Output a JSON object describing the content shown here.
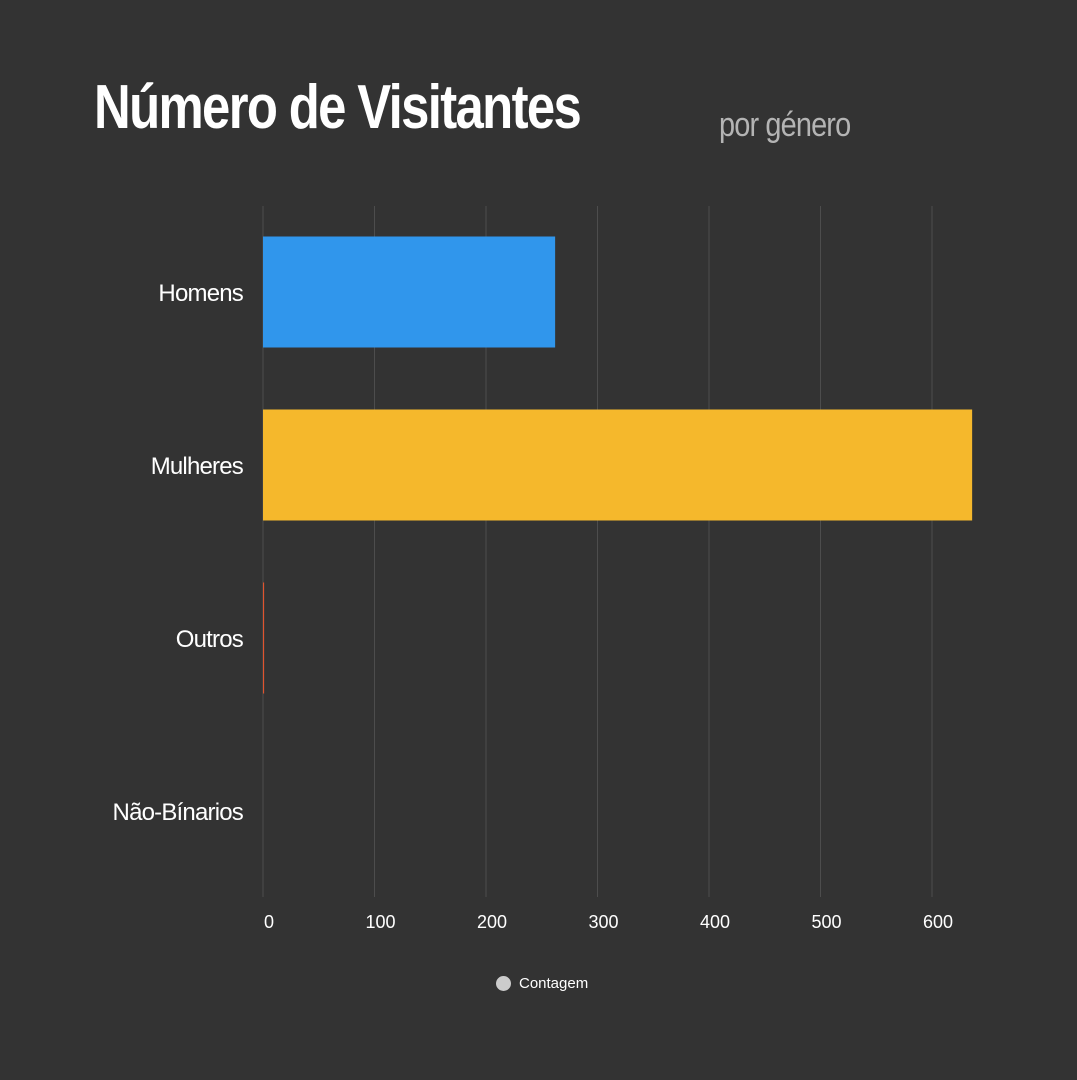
{
  "header": {
    "title": "Número de Visitantes",
    "subtitle": "por género"
  },
  "legend": {
    "label": "Contagem",
    "marker_color": "#cccccc"
  },
  "chart_data": {
    "type": "bar",
    "orientation": "horizontal",
    "title": "Número de Visitantes",
    "subtitle": "por género",
    "categories": [
      "Homens",
      "Mulheres",
      "Outros",
      "Não-Bínarios"
    ],
    "values": [
      262,
      636,
      1,
      0
    ],
    "colors": [
      "#3096ec",
      "#f5b82c",
      "#e0542e",
      "#8e44ad"
    ],
    "series": [
      {
        "name": "Contagem",
        "values": [
          262,
          636,
          1,
          0
        ]
      }
    ],
    "xlabel": "",
    "ylabel": "",
    "xlim": [
      0,
      600
    ],
    "xticks": [
      0,
      100,
      200,
      300,
      400,
      500,
      600
    ],
    "grid": true,
    "legend_position": "bottom"
  },
  "colors": {
    "background": "#333333",
    "grid": "#4d4d4d",
    "title": "#ffffff",
    "subtitle": "#b4b4b4"
  }
}
